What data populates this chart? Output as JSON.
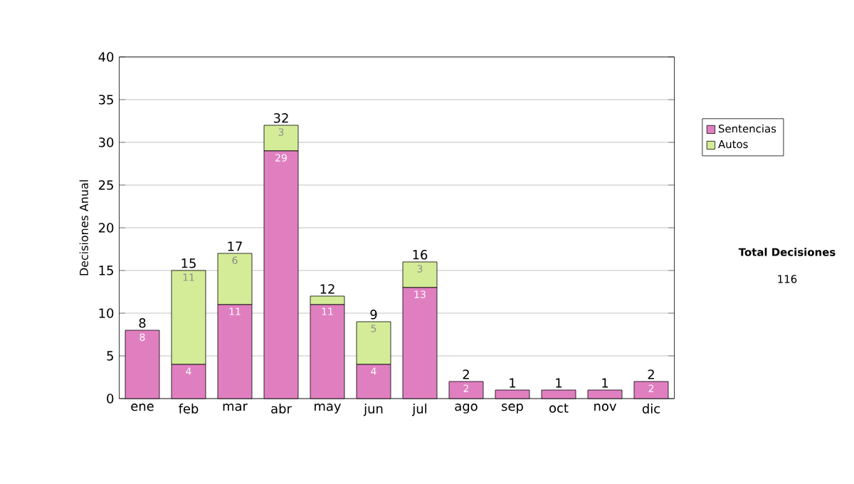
{
  "chart_data": {
    "type": "bar",
    "stacked": true,
    "ylabel": "Decisiones Anual",
    "categories": [
      "ene",
      "feb",
      "mar",
      "abr",
      "may",
      "jun",
      "jul",
      "ago",
      "sep",
      "oct",
      "nov",
      "dic"
    ],
    "series": [
      {
        "name": "Sentencias",
        "color": "#e07fc0",
        "values": [
          8,
          4,
          11,
          29,
          11,
          4,
          13,
          2,
          1,
          1,
          1,
          2
        ],
        "value_labels": [
          "8",
          "4",
          "11",
          "29",
          "11",
          "4",
          "13",
          "2",
          null,
          null,
          null,
          "2"
        ]
      },
      {
        "name": "Autos",
        "color": "#d4ec98",
        "values": [
          0,
          11,
          6,
          3,
          1,
          5,
          3,
          0,
          0,
          0,
          0,
          0
        ],
        "value_labels": [
          null,
          "11",
          "6",
          "3",
          null,
          "5",
          "3",
          null,
          null,
          null,
          null,
          null
        ]
      }
    ],
    "totals": [
      "8",
      "15",
      "17",
      "32",
      "12",
      "9",
      "16",
      "2",
      "1",
      "1",
      "1",
      "2"
    ],
    "ylim": [
      0,
      40
    ],
    "yticks": [
      0,
      5,
      10,
      15,
      20,
      25,
      30,
      35,
      40
    ],
    "grid": "y",
    "legend": "right",
    "annotations": [
      "Total Decisiones",
      "116"
    ]
  }
}
